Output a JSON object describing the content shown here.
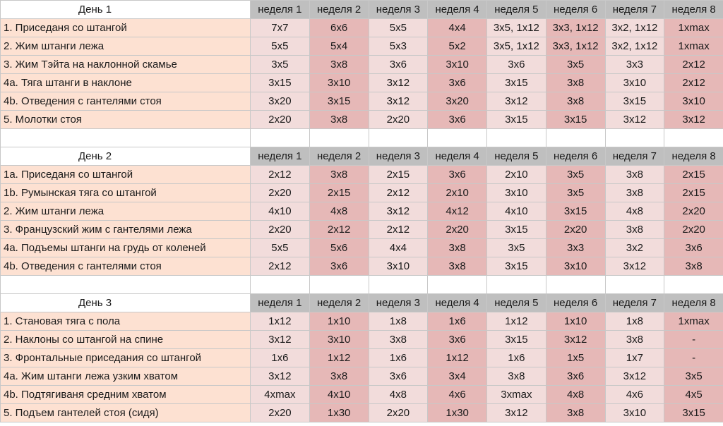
{
  "weeks": [
    "неделя 1",
    "неделя 2",
    "неделя 3",
    "неделя 4",
    "неделя 5",
    "неделя 6",
    "неделя 7",
    "неделя 8"
  ],
  "days": [
    {
      "title": "День 1",
      "rows": [
        {
          "name": "1. Приседаня со штангой",
          "values": [
            "7x7",
            "6x6",
            "5x5",
            "4x4",
            "3x5, 1x12",
            "3x3, 1x12",
            "3x2, 1x12",
            "1xmax"
          ]
        },
        {
          "name": "2. Жим штанги лежа",
          "values": [
            "5x5",
            "5x4",
            "5x3",
            "5x2",
            "3x5, 1x12",
            "3x3, 1x12",
            "3x2, 1x12",
            "1xmax"
          ]
        },
        {
          "name": "3. Жим Тэйта на наклонной скамье",
          "values": [
            "3x5",
            "3x8",
            "3x6",
            "3x10",
            "3x6",
            "3x5",
            "3x3",
            "2x12"
          ]
        },
        {
          "name": "4a. Тяга штанги в наклоне",
          "values": [
            "3x15",
            "3x10",
            "3x12",
            "3x6",
            "3x15",
            "3x8",
            "3x10",
            "2x12"
          ]
        },
        {
          "name": "4b. Отведения с гантелями стоя",
          "values": [
            "3x20",
            "3x15",
            "3x12",
            "3x20",
            "3x12",
            "3x8",
            "3x15",
            "3x10"
          ]
        },
        {
          "name": "5. Молотки стоя",
          "values": [
            "2x20",
            "3x8",
            "2x20",
            "3x6",
            "3x15",
            "3x15",
            "3x12",
            "3x12"
          ]
        }
      ]
    },
    {
      "title": "День 2",
      "rows": [
        {
          "name": "1a. Приседаня со штангой",
          "values": [
            "2x12",
            "3x8",
            "2x15",
            "3x6",
            "2x10",
            "3x5",
            "3x8",
            "2x15"
          ]
        },
        {
          "name": "1b. Румынская тяга со штангой",
          "values": [
            "2x20",
            "2x15",
            "2x12",
            "2x10",
            "3x10",
            "3x5",
            "3x8",
            "2x15"
          ]
        },
        {
          "name": "2. Жим штанги лежа",
          "values": [
            "4x10",
            "4x8",
            "3x12",
            "4x12",
            "4x10",
            "3x15",
            "4x8",
            "2x20"
          ]
        },
        {
          "name": "3. Французский жим с гантелями лежа",
          "values": [
            "2x20",
            "2x12",
            "2x12",
            "2x20",
            "3x15",
            "2x20",
            "3x8",
            "2x20"
          ]
        },
        {
          "name": "4a. Подъемы штанги на грудь от коленей",
          "values": [
            "5x5",
            "5x6",
            "4x4",
            "3x8",
            "3x5",
            "3x3",
            "3x2",
            "3x6"
          ]
        },
        {
          "name": "4b. Отведения с гантелями стоя",
          "values": [
            "2x12",
            "3x6",
            "3x10",
            "3x8",
            "3x15",
            "3x10",
            "3x12",
            "3x8"
          ]
        }
      ]
    },
    {
      "title": "День 3",
      "rows": [
        {
          "name": "1. Становая тяга с пола",
          "values": [
            "1x12",
            "1x10",
            "1x8",
            "1x6",
            "1x12",
            "1x10",
            "1x8",
            "1xmax"
          ]
        },
        {
          "name": "2. Наклоны со штангой на спине",
          "values": [
            "3x12",
            "3x10",
            "3x8",
            "3x6",
            "3x15",
            "3x12",
            "3x8",
            "-"
          ]
        },
        {
          "name": "3. Фронтальные приседания со штангой",
          "values": [
            "1x6",
            "1x12",
            "1x6",
            "1x12",
            "1x6",
            "1x5",
            "1x7",
            "-"
          ]
        },
        {
          "name": "4a. Жим штанги лежа узким хватом",
          "values": [
            "3x12",
            "3x8",
            "3x6",
            "3x4",
            "3x8",
            "3x6",
            "3x12",
            "3x5"
          ]
        },
        {
          "name": "4b. Подтягиваня средним хватом",
          "values": [
            "4xmax",
            "4x10",
            "4x8",
            "4x6",
            "3xmax",
            "4x8",
            "4x6",
            "4x5"
          ]
        },
        {
          "name": "5. Подъем гантелей стоя (сидя)",
          "values": [
            "2x20",
            "1x30",
            "2x20",
            "1x30",
            "3x12",
            "3x8",
            "3x10",
            "3x15"
          ]
        }
      ]
    }
  ],
  "colors": {
    "week_header": "#bfbfbf",
    "exercise_name": "#fde1d2",
    "odd_week": "#f2dcdb",
    "even_week": "#e6b8b7"
  }
}
